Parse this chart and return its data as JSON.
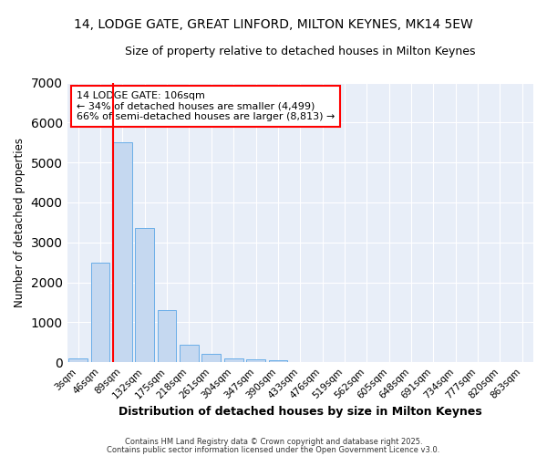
{
  "title1": "14, LODGE GATE, GREAT LINFORD, MILTON KEYNES, MK14 5EW",
  "title2": "Size of property relative to detached houses in Milton Keynes",
  "xlabel": "Distribution of detached houses by size in Milton Keynes",
  "ylabel": "Number of detached properties",
  "bar_labels": [
    "3sqm",
    "46sqm",
    "89sqm",
    "132sqm",
    "175sqm",
    "218sqm",
    "261sqm",
    "304sqm",
    "347sqm",
    "390sqm",
    "433sqm",
    "476sqm",
    "519sqm",
    "562sqm",
    "605sqm",
    "648sqm",
    "691sqm",
    "734sqm",
    "777sqm",
    "820sqm",
    "863sqm"
  ],
  "bar_values": [
    100,
    2500,
    5500,
    3350,
    1300,
    430,
    210,
    100,
    75,
    50,
    0,
    0,
    0,
    0,
    0,
    0,
    0,
    0,
    0,
    0,
    0
  ],
  "bar_color": "#c5d8f0",
  "bar_edge_color": "#6aaee8",
  "vline_color": "red",
  "vline_x_index": 2.0,
  "annotation_line1": "14 LODGE GATE: 106sqm",
  "annotation_line2": "← 34% of detached houses are smaller (4,499)",
  "annotation_line3": "66% of semi-detached houses are larger (8,813) →",
  "annotation_box_color": "white",
  "annotation_box_edge": "red",
  "ylim": [
    0,
    7000
  ],
  "plot_bg_color": "#e8eef8",
  "fig_bg_color": "#ffffff",
  "grid_color": "#ffffff",
  "footer1": "Contains HM Land Registry data © Crown copyright and database right 2025.",
  "footer2": "Contains public sector information licensed under the Open Government Licence v3.0."
}
